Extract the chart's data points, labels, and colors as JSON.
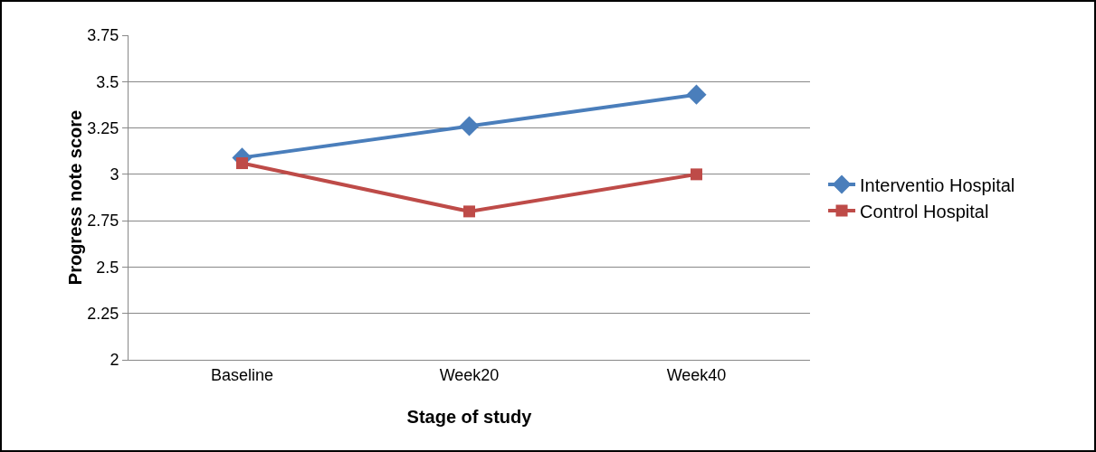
{
  "chart_data": {
    "type": "line",
    "xlabel": "Stage of study",
    "ylabel": "Progress note score",
    "categories": [
      "Baseline",
      "Week20",
      "Week40"
    ],
    "series": [
      {
        "name": "Interventio Hospital",
        "color": "#4a7ebb",
        "marker": "diamond",
        "values": [
          3.09,
          3.26,
          3.43
        ]
      },
      {
        "name": "Control Hospital",
        "color": "#be4b48",
        "marker": "square",
        "values": [
          3.06,
          2.8,
          3.0
        ]
      }
    ],
    "ylim": [
      2,
      3.75
    ],
    "yticks": [
      2,
      2.25,
      2.5,
      2.75,
      3,
      3.25,
      3.5,
      3.75
    ],
    "grid": "y",
    "legend": "right",
    "line_style": "solid"
  }
}
